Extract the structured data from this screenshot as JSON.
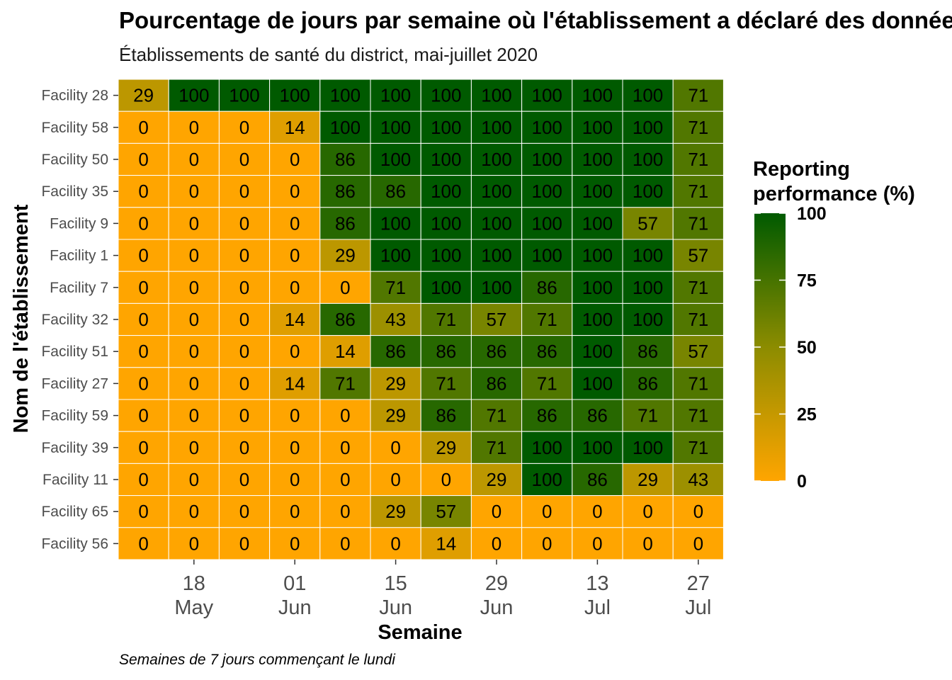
{
  "title": "Pourcentage de jours par semaine où l'établissement a déclaré des données",
  "subtitle": "Établissements de santé du district, mai-juillet 2020",
  "caption": "Semaines de 7 jours commençant le lundi",
  "colors": {
    "low": "#FFA500",
    "mid": "#8C8C00",
    "high": "#005A00",
    "cell_border": "#FFFFFF"
  },
  "chart_data": {
    "type": "heatmap",
    "title": "Pourcentage de jours par semaine où l'établissement a déclaré des données",
    "subtitle": "Établissements de santé du district, mai-juillet 2020",
    "xlabel": "Semaine",
    "ylabel": "Nom de l'établissement",
    "x": [
      "2020-05-11",
      "2020-05-18",
      "2020-05-25",
      "2020-06-01",
      "2020-06-08",
      "2020-06-15",
      "2020-06-22",
      "2020-06-29",
      "2020-07-06",
      "2020-07-13",
      "2020-07-20",
      "2020-07-27"
    ],
    "x_ticks": [
      {
        "x": "2020-05-18",
        "line1": "18",
        "line2": "May"
      },
      {
        "x": "2020-06-01",
        "line1": "01",
        "line2": "Jun"
      },
      {
        "x": "2020-06-15",
        "line1": "15",
        "line2": "Jun"
      },
      {
        "x": "2020-06-29",
        "line1": "29",
        "line2": "Jun"
      },
      {
        "x": "2020-07-13",
        "line1": "13",
        "line2": "Jul"
      },
      {
        "x": "2020-07-27",
        "line1": "27",
        "line2": "Jul"
      }
    ],
    "y": [
      "Facility 28",
      "Facility 58",
      "Facility 50",
      "Facility 35",
      "Facility 9",
      "Facility 1",
      "Facility 7",
      "Facility 32",
      "Facility 51",
      "Facility 27",
      "Facility 59",
      "Facility 39",
      "Facility 11",
      "Facility 65",
      "Facility 56"
    ],
    "values": [
      [
        29,
        100,
        100,
        100,
        100,
        100,
        100,
        100,
        100,
        100,
        100,
        71
      ],
      [
        0,
        0,
        0,
        14,
        100,
        100,
        100,
        100,
        100,
        100,
        100,
        71
      ],
      [
        0,
        0,
        0,
        0,
        86,
        100,
        100,
        100,
        100,
        100,
        100,
        71
      ],
      [
        0,
        0,
        0,
        0,
        86,
        86,
        100,
        100,
        100,
        100,
        100,
        71
      ],
      [
        0,
        0,
        0,
        0,
        86,
        100,
        100,
        100,
        100,
        100,
        57,
        71
      ],
      [
        0,
        0,
        0,
        0,
        29,
        100,
        100,
        100,
        100,
        100,
        100,
        57
      ],
      [
        0,
        0,
        0,
        0,
        0,
        71,
        100,
        100,
        86,
        100,
        100,
        71
      ],
      [
        0,
        0,
        0,
        14,
        86,
        43,
        71,
        57,
        71,
        100,
        100,
        71
      ],
      [
        0,
        0,
        0,
        0,
        14,
        86,
        86,
        86,
        86,
        100,
        86,
        57
      ],
      [
        0,
        0,
        0,
        14,
        71,
        29,
        71,
        86,
        71,
        100,
        86,
        71
      ],
      [
        0,
        0,
        0,
        0,
        0,
        29,
        86,
        71,
        86,
        86,
        71,
        71
      ],
      [
        0,
        0,
        0,
        0,
        0,
        0,
        29,
        71,
        100,
        100,
        100,
        71
      ],
      [
        0,
        0,
        0,
        0,
        0,
        0,
        0,
        29,
        100,
        86,
        29,
        43
      ],
      [
        0,
        0,
        0,
        0,
        0,
        29,
        57,
        0,
        0,
        0,
        0,
        0
      ],
      [
        0,
        0,
        0,
        0,
        0,
        0,
        14,
        0,
        0,
        0,
        0,
        0
      ]
    ],
    "value_range": [
      0,
      100
    ],
    "legend": {
      "title_line1": "Reporting",
      "title_line2": "performance (%)",
      "ticks": [
        0,
        25,
        50,
        75,
        100
      ],
      "placement": "right"
    }
  }
}
